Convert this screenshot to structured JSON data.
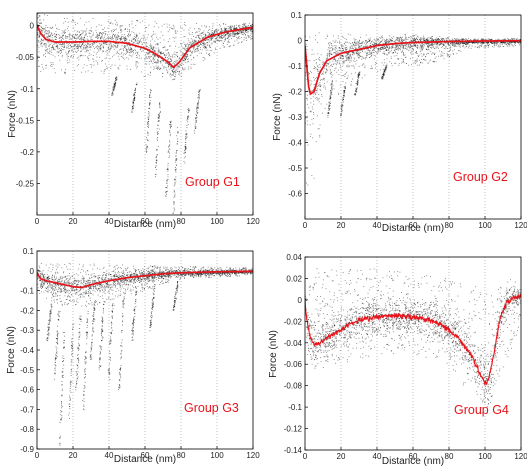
{
  "colors": {
    "mean_curve": "#e8141b",
    "scatter": "#1a1a1a",
    "grid": "#9a9a9a",
    "frame": "#000000"
  },
  "chart_data": [
    {
      "type": "scatter",
      "title": "",
      "group_label": "Group G1",
      "xlabel": "Distance (nm)",
      "ylabel": "Force (nN)",
      "xlim": [
        0,
        120
      ],
      "ylim": [
        -0.3,
        0.02
      ],
      "xticks": [
        0,
        20,
        40,
        60,
        80,
        100,
        120
      ],
      "yticks": [
        0,
        -0.05,
        -0.1,
        -0.15,
        -0.2,
        -0.25
      ],
      "ytick_labels": [
        "0",
        "-0.05",
        "-0.1",
        "-0.15",
        "-0.2",
        "-0.25"
      ],
      "grid": "vertical-dotted",
      "mean_curve": [
        [
          0,
          0.0
        ],
        [
          2,
          -0.012
        ],
        [
          5,
          -0.022
        ],
        [
          10,
          -0.026
        ],
        [
          20,
          -0.026
        ],
        [
          30,
          -0.025
        ],
        [
          40,
          -0.025
        ],
        [
          50,
          -0.028
        ],
        [
          60,
          -0.036
        ],
        [
          66,
          -0.045
        ],
        [
          72,
          -0.056
        ],
        [
          76,
          -0.066
        ],
        [
          79,
          -0.058
        ],
        [
          85,
          -0.035
        ],
        [
          95,
          -0.018
        ],
        [
          105,
          -0.01
        ],
        [
          115,
          -0.005
        ],
        [
          120,
          -0.003
        ]
      ],
      "scatter_band": [
        [
          0,
          0.02,
          -0.08
        ],
        [
          20,
          0.015,
          -0.075
        ],
        [
          40,
          0.012,
          -0.075
        ],
        [
          60,
          0.01,
          -0.08
        ],
        [
          80,
          0.006,
          -0.08
        ],
        [
          100,
          0.005,
          -0.04
        ],
        [
          120,
          0.005,
          -0.02
        ]
      ],
      "detach_tails": [
        [
          44,
          -0.08,
          -0.11
        ],
        [
          55,
          -0.09,
          -0.14
        ],
        [
          63,
          -0.1,
          -0.2
        ],
        [
          68,
          -0.12,
          -0.24
        ],
        [
          74,
          -0.15,
          -0.27
        ],
        [
          78,
          -0.16,
          -0.3
        ],
        [
          84,
          -0.13,
          -0.22
        ],
        [
          90,
          -0.1,
          -0.17
        ]
      ]
    },
    {
      "type": "scatter",
      "title": "",
      "group_label": "Group G2",
      "xlabel": "Distance (nm)",
      "ylabel": "Force (nN)",
      "xlim": [
        0,
        120
      ],
      "ylim": [
        -0.7,
        0.1
      ],
      "xticks": [
        0,
        20,
        40,
        60,
        80,
        100,
        120
      ],
      "yticks": [
        0.1,
        0,
        -0.1,
        -0.2,
        -0.3,
        -0.4,
        -0.5,
        -0.6
      ],
      "ytick_labels": [
        "0.1",
        "0",
        "-0.1",
        "-0.2",
        "-0.3",
        "-0.4",
        "-0.5",
        "-0.6"
      ],
      "grid": "vertical-dotted",
      "mean_curve": [
        [
          0,
          -0.02
        ],
        [
          1,
          -0.1
        ],
        [
          2,
          -0.18
        ],
        [
          3,
          -0.21
        ],
        [
          5,
          -0.2
        ],
        [
          8,
          -0.13
        ],
        [
          12,
          -0.08
        ],
        [
          20,
          -0.05
        ],
        [
          30,
          -0.035
        ],
        [
          40,
          -0.02
        ],
        [
          50,
          -0.012
        ],
        [
          60,
          -0.008
        ],
        [
          80,
          -0.004
        ],
        [
          100,
          -0.002
        ],
        [
          120,
          -0.001
        ]
      ],
      "scatter_band": [
        [
          0,
          0.05,
          -0.68
        ],
        [
          5,
          0.04,
          -0.55
        ],
        [
          10,
          0.03,
          -0.3
        ],
        [
          20,
          0.03,
          -0.2
        ],
        [
          40,
          0.02,
          -0.12
        ],
        [
          60,
          0.015,
          -0.1
        ],
        [
          75,
          0.01,
          -0.08
        ],
        [
          90,
          0.01,
          -0.03
        ],
        [
          120,
          0.01,
          -0.02
        ]
      ],
      "detach_tails": [
        [
          15,
          -0.15,
          -0.3
        ],
        [
          22,
          -0.18,
          -0.3
        ],
        [
          30,
          -0.12,
          -0.22
        ],
        [
          45,
          -0.1,
          -0.15
        ]
      ]
    },
    {
      "type": "scatter",
      "title": "",
      "group_label": "Group G3",
      "xlabel": "Distance (nm)",
      "ylabel": "Force (nN)",
      "xlim": [
        0,
        120
      ],
      "ylim": [
        -0.9,
        0.1
      ],
      "xticks": [
        0,
        20,
        40,
        60,
        80,
        100,
        120
      ],
      "yticks": [
        0.1,
        0,
        -0.1,
        -0.2,
        -0.3,
        -0.4,
        -0.5,
        -0.6,
        -0.7,
        -0.8,
        -0.9
      ],
      "ytick_labels": [
        "0.1",
        "0",
        "-0.1",
        "-0.2",
        "-0.3",
        "-0.4",
        "-0.5",
        "-0.6",
        "-0.7",
        "-0.8",
        "-0.9"
      ],
      "grid": "vertical-dotted",
      "mean_curve": [
        [
          0,
          -0.01
        ],
        [
          2,
          -0.04
        ],
        [
          5,
          -0.05
        ],
        [
          10,
          -0.06
        ],
        [
          15,
          -0.07
        ],
        [
          20,
          -0.08
        ],
        [
          25,
          -0.085
        ],
        [
          30,
          -0.07
        ],
        [
          40,
          -0.05
        ],
        [
          50,
          -0.035
        ],
        [
          60,
          -0.025
        ],
        [
          70,
          -0.015
        ],
        [
          80,
          -0.01
        ],
        [
          100,
          -0.005
        ],
        [
          120,
          -0.003
        ]
      ],
      "scatter_band": [
        [
          0,
          0.04,
          -0.12
        ],
        [
          20,
          0.04,
          -0.2
        ],
        [
          40,
          0.035,
          -0.15
        ],
        [
          60,
          0.03,
          -0.1
        ],
        [
          80,
          0.025,
          -0.04
        ],
        [
          100,
          0.02,
          -0.03
        ],
        [
          120,
          0.02,
          -0.02
        ]
      ],
      "detach_tails": [
        [
          8,
          -0.15,
          -0.35
        ],
        [
          12,
          -0.2,
          -0.55
        ],
        [
          15,
          -0.3,
          -0.88
        ],
        [
          20,
          -0.25,
          -0.75
        ],
        [
          24,
          -0.2,
          -0.6
        ],
        [
          28,
          -0.2,
          -0.7
        ],
        [
          32,
          -0.15,
          -0.45
        ],
        [
          37,
          -0.15,
          -0.5
        ],
        [
          42,
          -0.15,
          -0.55
        ],
        [
          48,
          -0.12,
          -0.6
        ],
        [
          55,
          -0.1,
          -0.35
        ],
        [
          65,
          -0.08,
          -0.3
        ],
        [
          78,
          -0.05,
          -0.2
        ]
      ]
    },
    {
      "type": "scatter",
      "title": "",
      "group_label": "Group G4",
      "xlabel": "Distance (nm)",
      "ylabel": "Force (nN)",
      "xlim": [
        0,
        120
      ],
      "ylim": [
        -0.14,
        0.04
      ],
      "xticks": [
        0,
        20,
        40,
        60,
        80,
        100,
        120
      ],
      "yticks": [
        0.04,
        0.02,
        0,
        -0.02,
        -0.04,
        -0.06,
        -0.08,
        -0.1,
        -0.12,
        -0.14
      ],
      "ytick_labels": [
        "0.04",
        "0.02",
        "0",
        "-0.02",
        "-0.04",
        "-0.06",
        "-0.08",
        "-0.1",
        "-0.12",
        "-0.14"
      ],
      "grid": "vertical-dotted",
      "mean_curve": [
        [
          0,
          0.0
        ],
        [
          1,
          -0.02
        ],
        [
          3,
          -0.035
        ],
        [
          5,
          -0.042
        ],
        [
          8,
          -0.04
        ],
        [
          12,
          -0.035
        ],
        [
          18,
          -0.03
        ],
        [
          25,
          -0.022
        ],
        [
          35,
          -0.017
        ],
        [
          45,
          -0.015
        ],
        [
          55,
          -0.015
        ],
        [
          65,
          -0.017
        ],
        [
          75,
          -0.022
        ],
        [
          85,
          -0.035
        ],
        [
          92,
          -0.05
        ],
        [
          97,
          -0.068
        ],
        [
          100,
          -0.078
        ],
        [
          102,
          -0.075
        ],
        [
          105,
          -0.05
        ],
        [
          108,
          -0.02
        ],
        [
          112,
          -0.002
        ],
        [
          116,
          0.002
        ],
        [
          120,
          0.003
        ]
      ],
      "scatter_band": [
        [
          0,
          0.03,
          -0.06
        ],
        [
          20,
          0.03,
          -0.06
        ],
        [
          40,
          0.03,
          -0.05
        ],
        [
          60,
          0.025,
          -0.05
        ],
        [
          80,
          0.02,
          -0.06
        ],
        [
          100,
          0.01,
          -0.11
        ],
        [
          120,
          0.015,
          -0.02
        ]
      ],
      "detach_tails": []
    }
  ]
}
